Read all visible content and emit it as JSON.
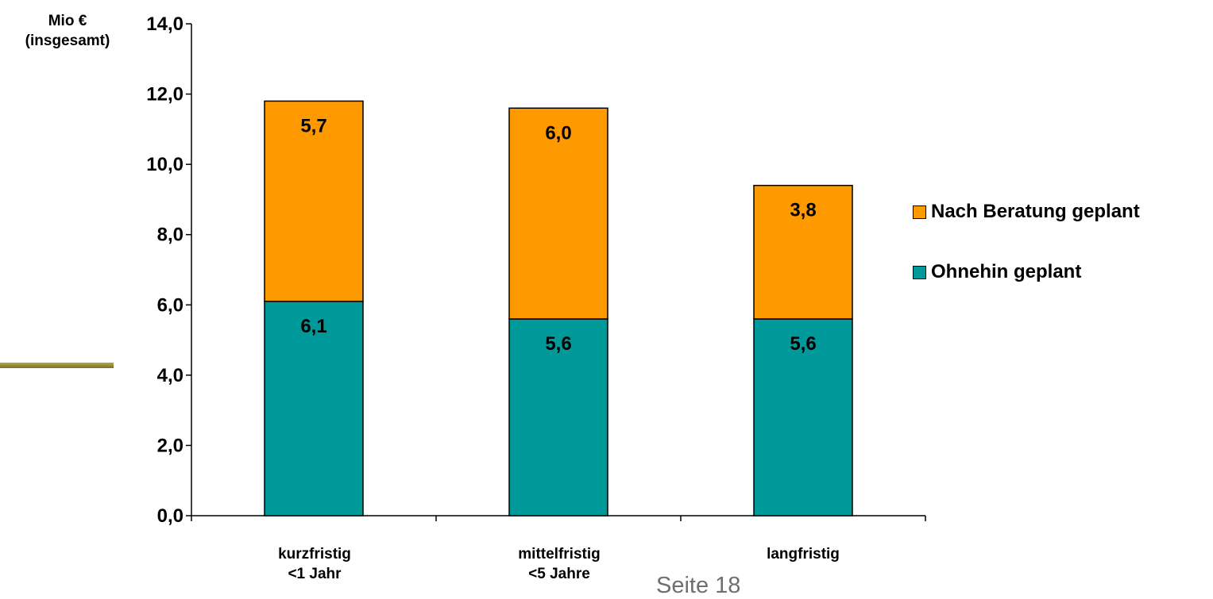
{
  "chart_data": {
    "type": "bar",
    "stacked": true,
    "y_unit_label_line1": "Mio €",
    "y_unit_label_line2": "(insgesamt)",
    "categories": [
      {
        "line1": "kurzfristig",
        "line2": "<1 Jahr"
      },
      {
        "line1": "mittelfristig",
        "line2": "<5 Jahre"
      },
      {
        "line1": "langfristig",
        "line2": ""
      }
    ],
    "series": [
      {
        "name": "Ohnehin geplant",
        "values": [
          6.1,
          5.6,
          5.6
        ],
        "labels": [
          "6,1",
          "5,6",
          "5,6"
        ],
        "color": "#009999"
      },
      {
        "name": "Nach Beratung geplant",
        "values": [
          5.7,
          6.0,
          3.8
        ],
        "labels": [
          "5,7",
          "6,0",
          "3,8"
        ],
        "color": "#ff9900"
      }
    ],
    "ylim": [
      0,
      14
    ],
    "yticks": [
      0,
      2,
      4,
      6,
      8,
      10,
      12,
      14
    ],
    "ytick_labels": [
      "0,0",
      "2,0",
      "4,0",
      "6,0",
      "8,0",
      "10,0",
      "12,0",
      "14,0"
    ],
    "grid": false,
    "legend_position": "right"
  },
  "footer": {
    "page_label": "Seite 18"
  },
  "colors": {
    "decor_line": "#9a8f3c",
    "axis": "#000000"
  }
}
